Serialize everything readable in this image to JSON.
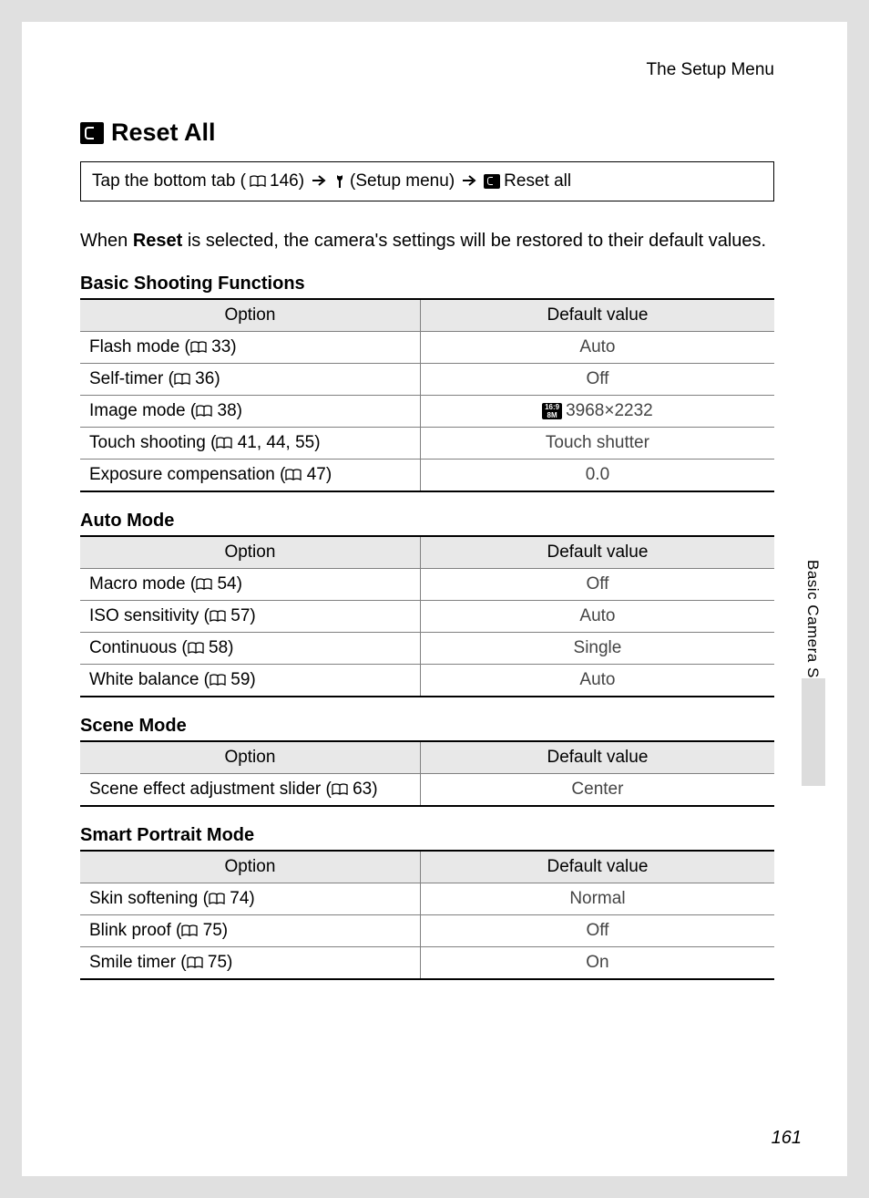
{
  "header": {
    "section": "The Setup Menu"
  },
  "title": "Reset All",
  "nav": {
    "prefix": "Tap the bottom tab (",
    "pageref1": "146)",
    "setup_label": "(Setup menu)",
    "reset_label": "Reset all"
  },
  "intro": {
    "pre": "When ",
    "bold": "Reset",
    "post": " is selected, the camera's settings will be restored to their default values."
  },
  "columns": {
    "option": "Option",
    "default": "Default value"
  },
  "image_mode_badge": {
    "top": "16:9",
    "bottom": "8M"
  },
  "sections": [
    {
      "label": "Basic Shooting Functions",
      "rows": [
        {
          "option": "Flash mode",
          "ref": "33",
          "default": "Auto"
        },
        {
          "option": "Self-timer",
          "ref": "36",
          "default": "Off"
        },
        {
          "option": "Image mode",
          "ref": "38",
          "default": "3968×2232",
          "badge": true
        },
        {
          "option": "Touch shooting",
          "ref": "41, 44, 55",
          "default": "Touch shutter"
        },
        {
          "option": "Exposure compensation",
          "ref": "47",
          "default": "0.0"
        }
      ]
    },
    {
      "label": "Auto Mode",
      "rows": [
        {
          "option": "Macro mode",
          "ref": "54",
          "default": "Off"
        },
        {
          "option": "ISO sensitivity",
          "ref": "57",
          "default": "Auto"
        },
        {
          "option": "Continuous",
          "ref": "58",
          "default": "Single"
        },
        {
          "option": "White balance",
          "ref": "59",
          "default": "Auto"
        }
      ]
    },
    {
      "label": "Scene Mode",
      "rows": [
        {
          "option": "Scene effect adjustment slider",
          "ref": "63",
          "default": "Center"
        }
      ]
    },
    {
      "label": "Smart Portrait Mode",
      "rows": [
        {
          "option": "Skin softening",
          "ref": "74",
          "default": "Normal"
        },
        {
          "option": "Blink proof",
          "ref": "75",
          "default": "Off"
        },
        {
          "option": "Smile timer",
          "ref": "75",
          "default": "On"
        }
      ]
    }
  ],
  "side": {
    "label": "Basic Camera Setup"
  },
  "page_number": "161"
}
